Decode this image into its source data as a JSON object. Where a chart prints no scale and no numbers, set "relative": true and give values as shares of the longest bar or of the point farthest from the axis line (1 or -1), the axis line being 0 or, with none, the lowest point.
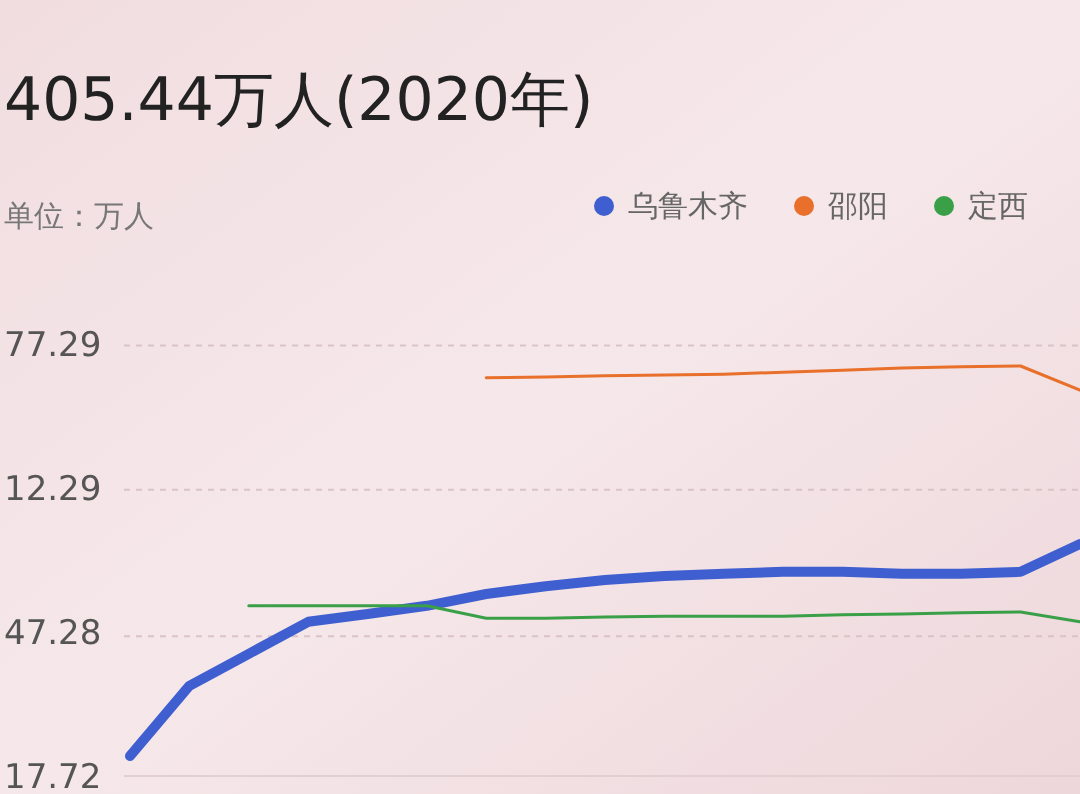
{
  "chart_data": {
    "type": "line",
    "title": "405.44万人(2020年)",
    "subtitle": "单位：万人",
    "relative": true,
    "ref_lines": [
      {
        "axis": "y",
        "value": 1.05,
        "color": "#d9c3c7",
        "line_style": "dashed"
      },
      {
        "axis": "y",
        "value": 0.698,
        "color": "#d9c3c7",
        "line_style": "dashed"
      },
      {
        "axis": "y",
        "value": 0.341,
        "color": "#d9c3c7",
        "line_style": "dashed"
      }
    ],
    "legend": "top right",
    "marker": "none",
    "line_style": "solid",
    "annotations": [
      "77.29",
      "12.29",
      "47.28",
      "17.72"
    ],
    "categories": [
      null,
      null,
      null,
      null,
      null,
      null,
      null,
      null,
      null,
      null,
      null,
      null,
      null,
      null,
      null,
      null,
      null
    ],
    "series": [
      {
        "name": "乌鲁木齐",
        "color": "#3f5fd0",
        "values": [
          0.049,
          0.22,
          0.298,
          0.376,
          0.395,
          0.415,
          0.444,
          0.463,
          0.478,
          0.488,
          0.493,
          0.498,
          0.498,
          0.493,
          0.493,
          0.498,
          0.566
        ]
      },
      {
        "name": "邵阳",
        "color": "#e8702a",
        "values": [
          null,
          null,
          null,
          null,
          null,
          null,
          0.971,
          0.973,
          0.976,
          0.978,
          0.98,
          0.985,
          0.99,
          0.995,
          0.998,
          1,
          0.941
        ]
      },
      {
        "name": "定西",
        "color": "#3aa048",
        "values": [
          null,
          null,
          0.415,
          0.415,
          0.415,
          0.415,
          0.385,
          0.385,
          0.388,
          0.39,
          0.39,
          0.39,
          0.393,
          0.395,
          0.398,
          0.4,
          0.376
        ]
      }
    ]
  }
}
